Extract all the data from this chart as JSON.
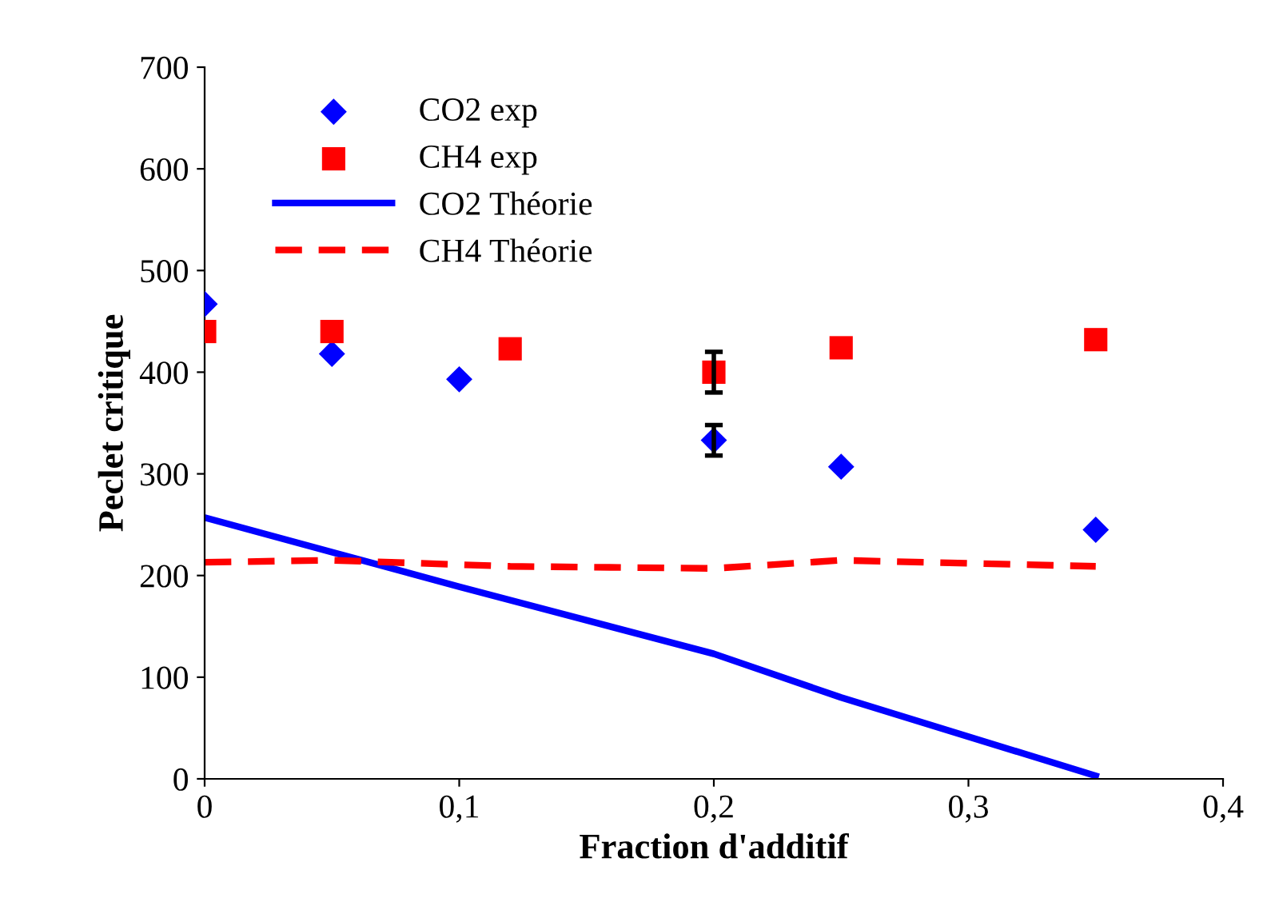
{
  "chart_data": {
    "type": "scatter",
    "xlabel": "Fraction d'additif",
    "ylabel": "Peclet critique",
    "xlim": [
      0,
      0.4
    ],
    "ylim": [
      0,
      700
    ],
    "xticks": [
      0,
      {
        "value": 0.1,
        "label": "0,1"
      },
      {
        "value": 0.2,
        "label": "0,2"
      },
      {
        "value": 0.3,
        "label": "0,3"
      },
      {
        "value": 0.4,
        "label": "0,4"
      }
    ],
    "yticks": [
      0,
      100,
      200,
      300,
      400,
      500,
      600,
      700
    ],
    "grid": false,
    "legend": "top left",
    "series": [
      {
        "name": "CO2 exp",
        "marker": "diamond",
        "color": "#0000ff",
        "x": [
          0,
          0.05,
          0.1,
          0.2,
          0.25,
          0.35
        ],
        "values": [
          467,
          418,
          393,
          333,
          307,
          245
        ],
        "errors": [
          null,
          null,
          null,
          15,
          null,
          null
        ]
      },
      {
        "name": "CH4 exp",
        "marker": "square",
        "color": "#ff0000",
        "x": [
          0,
          0.05,
          0.12,
          0.2,
          0.25,
          0.35
        ],
        "values": [
          440,
          440,
          423,
          400,
          424,
          432
        ],
        "errors": [
          null,
          null,
          null,
          20,
          null,
          null
        ]
      },
      {
        "name": "CO2 Théorie",
        "type": "line",
        "line_style": "solid",
        "color": "#0000ff",
        "x": [
          0,
          0.05,
          0.1,
          0.2,
          0.25,
          0.35
        ],
        "values": [
          257,
          223,
          189,
          123,
          80,
          3
        ]
      },
      {
        "name": "CH4 Théorie",
        "type": "line",
        "line_style": "dashed",
        "color": "#ff0000",
        "x": [
          0,
          0.05,
          0.12,
          0.2,
          0.25,
          0.35
        ],
        "values": [
          213,
          215,
          209,
          207,
          215,
          209
        ]
      }
    ]
  }
}
